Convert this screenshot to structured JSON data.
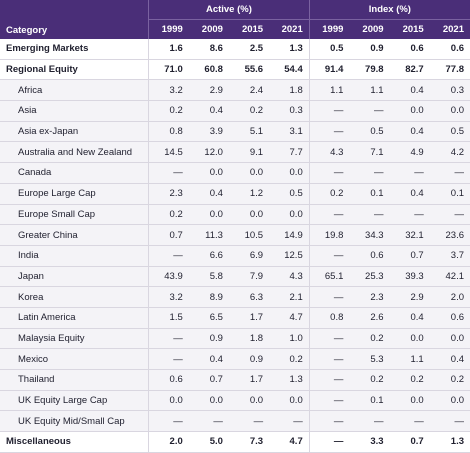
{
  "header": {
    "category_label": "Category",
    "active_label": "Active (%)",
    "index_label": "Index (%)",
    "years": [
      "1999",
      "2009",
      "2015",
      "2021"
    ]
  },
  "rows": [
    {
      "category": "Emerging Markets",
      "bold": true,
      "active": [
        "1.6",
        "8.6",
        "2.5",
        "1.3"
      ],
      "index": [
        "0.5",
        "0.9",
        "0.6",
        "0.6"
      ]
    },
    {
      "category": "Regional Equity",
      "bold": true,
      "active": [
        "71.0",
        "60.8",
        "55.6",
        "54.4"
      ],
      "index": [
        "91.4",
        "79.8",
        "82.7",
        "77.8"
      ]
    },
    {
      "category": "Africa",
      "bold": false,
      "active": [
        "3.2",
        "2.9",
        "2.4",
        "1.8"
      ],
      "index": [
        "1.1",
        "1.1",
        "0.4",
        "0.3"
      ]
    },
    {
      "category": "Asia",
      "bold": false,
      "active": [
        "0.2",
        "0.4",
        "0.2",
        "0.3"
      ],
      "index": [
        "—",
        "—",
        "0.0",
        "0.0"
      ]
    },
    {
      "category": "Asia ex-Japan",
      "bold": false,
      "active": [
        "0.8",
        "3.9",
        "5.1",
        "3.1"
      ],
      "index": [
        "—",
        "0.5",
        "0.4",
        "0.5"
      ]
    },
    {
      "category": "Australia and New Zealand",
      "bold": false,
      "active": [
        "14.5",
        "12.0",
        "9.1",
        "7.7"
      ],
      "index": [
        "4.3",
        "7.1",
        "4.9",
        "4.2"
      ]
    },
    {
      "category": "Canada",
      "bold": false,
      "active": [
        "—",
        "0.0",
        "0.0",
        "0.0"
      ],
      "index": [
        "—",
        "—",
        "—",
        "—"
      ]
    },
    {
      "category": "Europe Large Cap",
      "bold": false,
      "active": [
        "2.3",
        "0.4",
        "1.2",
        "0.5"
      ],
      "index": [
        "0.2",
        "0.1",
        "0.4",
        "0.1"
      ]
    },
    {
      "category": "Europe Small Cap",
      "bold": false,
      "active": [
        "0.2",
        "0.0",
        "0.0",
        "0.0"
      ],
      "index": [
        "—",
        "—",
        "—",
        "—"
      ]
    },
    {
      "category": "Greater China",
      "bold": false,
      "active": [
        "0.7",
        "11.3",
        "10.5",
        "14.9"
      ],
      "index": [
        "19.8",
        "34.3",
        "32.1",
        "23.6"
      ]
    },
    {
      "category": "India",
      "bold": false,
      "active": [
        "—",
        "6.6",
        "6.9",
        "12.5"
      ],
      "index": [
        "—",
        "0.6",
        "0.7",
        "3.7"
      ]
    },
    {
      "category": "Japan",
      "bold": false,
      "active": [
        "43.9",
        "5.8",
        "7.9",
        "4.3"
      ],
      "index": [
        "65.1",
        "25.3",
        "39.3",
        "42.1"
      ]
    },
    {
      "category": "Korea",
      "bold": false,
      "active": [
        "3.2",
        "8.9",
        "6.3",
        "2.1"
      ],
      "index": [
        "—",
        "2.3",
        "2.9",
        "2.0"
      ]
    },
    {
      "category": "Latin America",
      "bold": false,
      "active": [
        "1.5",
        "6.5",
        "1.7",
        "4.7"
      ],
      "index": [
        "0.8",
        "2.6",
        "0.4",
        "0.6"
      ]
    },
    {
      "category": "Malaysia Equity",
      "bold": false,
      "active": [
        "—",
        "0.9",
        "1.8",
        "1.0"
      ],
      "index": [
        "—",
        "0.2",
        "0.0",
        "0.0"
      ]
    },
    {
      "category": "Mexico",
      "bold": false,
      "active": [
        "—",
        "0.4",
        "0.9",
        "0.2"
      ],
      "index": [
        "—",
        "5.3",
        "1.1",
        "0.4"
      ]
    },
    {
      "category": "Thailand",
      "bold": false,
      "active": [
        "0.6",
        "0.7",
        "1.7",
        "1.3"
      ],
      "index": [
        "—",
        "0.2",
        "0.2",
        "0.2"
      ]
    },
    {
      "category": "UK Equity Large Cap",
      "bold": false,
      "active": [
        "0.0",
        "0.0",
        "0.0",
        "0.0"
      ],
      "index": [
        "—",
        "0.1",
        "0.0",
        "0.0"
      ]
    },
    {
      "category": "UK Equity Mid/Small Cap",
      "bold": false,
      "active": [
        "—",
        "—",
        "—",
        "—"
      ],
      "index": [
        "—",
        "—",
        "—",
        "—"
      ]
    },
    {
      "category": "Miscellaneous",
      "bold": true,
      "active": [
        "2.0",
        "5.0",
        "7.3",
        "4.7"
      ],
      "index": [
        "—",
        "3.3",
        "0.7",
        "1.3"
      ]
    }
  ],
  "colors": {
    "header_bg": "#4a2e78",
    "header_text": "#ffffff"
  }
}
